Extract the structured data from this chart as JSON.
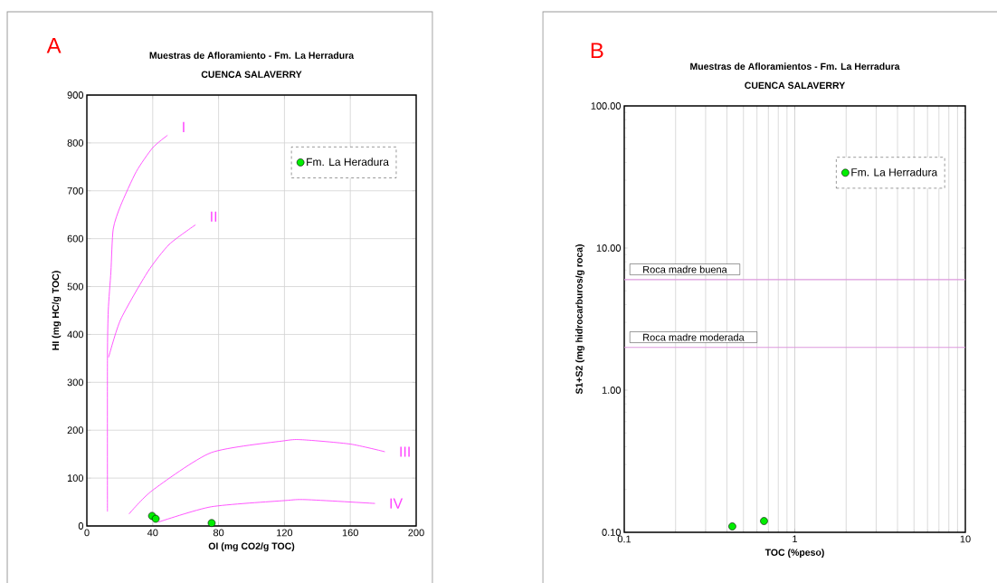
{
  "chart_data": [
    {
      "type": "scatter",
      "title": "Muestras de Afloramiento  - Fm. La Herradura",
      "subtitle": "CUENCA SALAVERRY",
      "xlabel": "OI (mg CO2/g TOC)",
      "ylabel": "HI (mg HC/g TOC)",
      "annotations": [
        "A"
      ],
      "xlim": [
        0,
        200
      ],
      "ylim": [
        0,
        900
      ],
      "xticks": [
        0,
        40,
        80,
        120,
        160,
        200
      ],
      "yticks": [
        0,
        100,
        200,
        300,
        400,
        500,
        600,
        700,
        800,
        900
      ],
      "grid": true,
      "legend": "top right",
      "series": [
        {
          "name": "Fm. La Heradura",
          "type": "scatter",
          "marker": "circle",
          "color": "#00ee00",
          "x": [
            39.6,
            41.8,
            75.8
          ],
          "values": [
            21,
            15,
            6
          ]
        },
        {
          "name": "I",
          "type": "line",
          "color": "#ff44ff",
          "x": [
            12.5,
            12.5,
            13,
            14.6,
            16,
            20.5,
            30,
            40,
            49
          ],
          "values": [
            30,
            350,
            450,
            531,
            620,
            669,
            740,
            790,
            816
          ]
        },
        {
          "name": "II",
          "type": "line",
          "color": "#ff44ff",
          "x": [
            13.2,
            20.5,
            37,
            50,
            66
          ],
          "values": [
            352,
            431,
            531,
            588,
            629
          ]
        },
        {
          "name": "III",
          "type": "line",
          "color": "#ff44ff",
          "x": [
            25.6,
            39.7,
            75.4,
            120,
            131,
            160,
            181
          ],
          "values": [
            25,
            74,
            153,
            178,
            180,
            171,
            155
          ]
        },
        {
          "name": "IV",
          "type": "line",
          "color": "#ff44ff",
          "x": [
            43.4,
            75.4,
            120,
            133,
            175
          ],
          "values": [
            8,
            40,
            53,
            55,
            47
          ]
        }
      ]
    },
    {
      "type": "scatter",
      "title": "Muestras de Afloramientos  - Fm. La Herradura",
      "subtitle": "CUENCA SALAVERRY",
      "xlabel": "TOC (%peso)",
      "ylabel": "S1+S2 (mg hidrocarburos/g roca)",
      "annotations": [
        "B"
      ],
      "xlim": [
        0.1,
        10
      ],
      "ylim": [
        0.1,
        100
      ],
      "xticks": [
        0.1,
        1,
        10
      ],
      "yticks": [
        {
          "value": 0.1,
          "label": "0.10"
        },
        {
          "value": 1,
          "label": "1.00"
        },
        {
          "value": 10,
          "label": "10.00"
        },
        {
          "value": 100,
          "label": "100.00"
        }
      ],
      "log": "xy",
      "grid": "x",
      "legend": "top right",
      "series": [
        {
          "name": "Fm. La Herradura",
          "type": "scatter",
          "marker": "circle",
          "color": "#00ee00",
          "x": [
            0.43,
            0.66
          ],
          "values": [
            0.11,
            0.12
          ]
        }
      ],
      "ref_lines": [
        {
          "axis": "y",
          "value": 6,
          "label": "Roca madre buena",
          "color": "#dd99dd"
        },
        {
          "axis": "y",
          "value": 2,
          "label": "Roca madre moderada",
          "color": "#dd99dd"
        }
      ]
    }
  ]
}
